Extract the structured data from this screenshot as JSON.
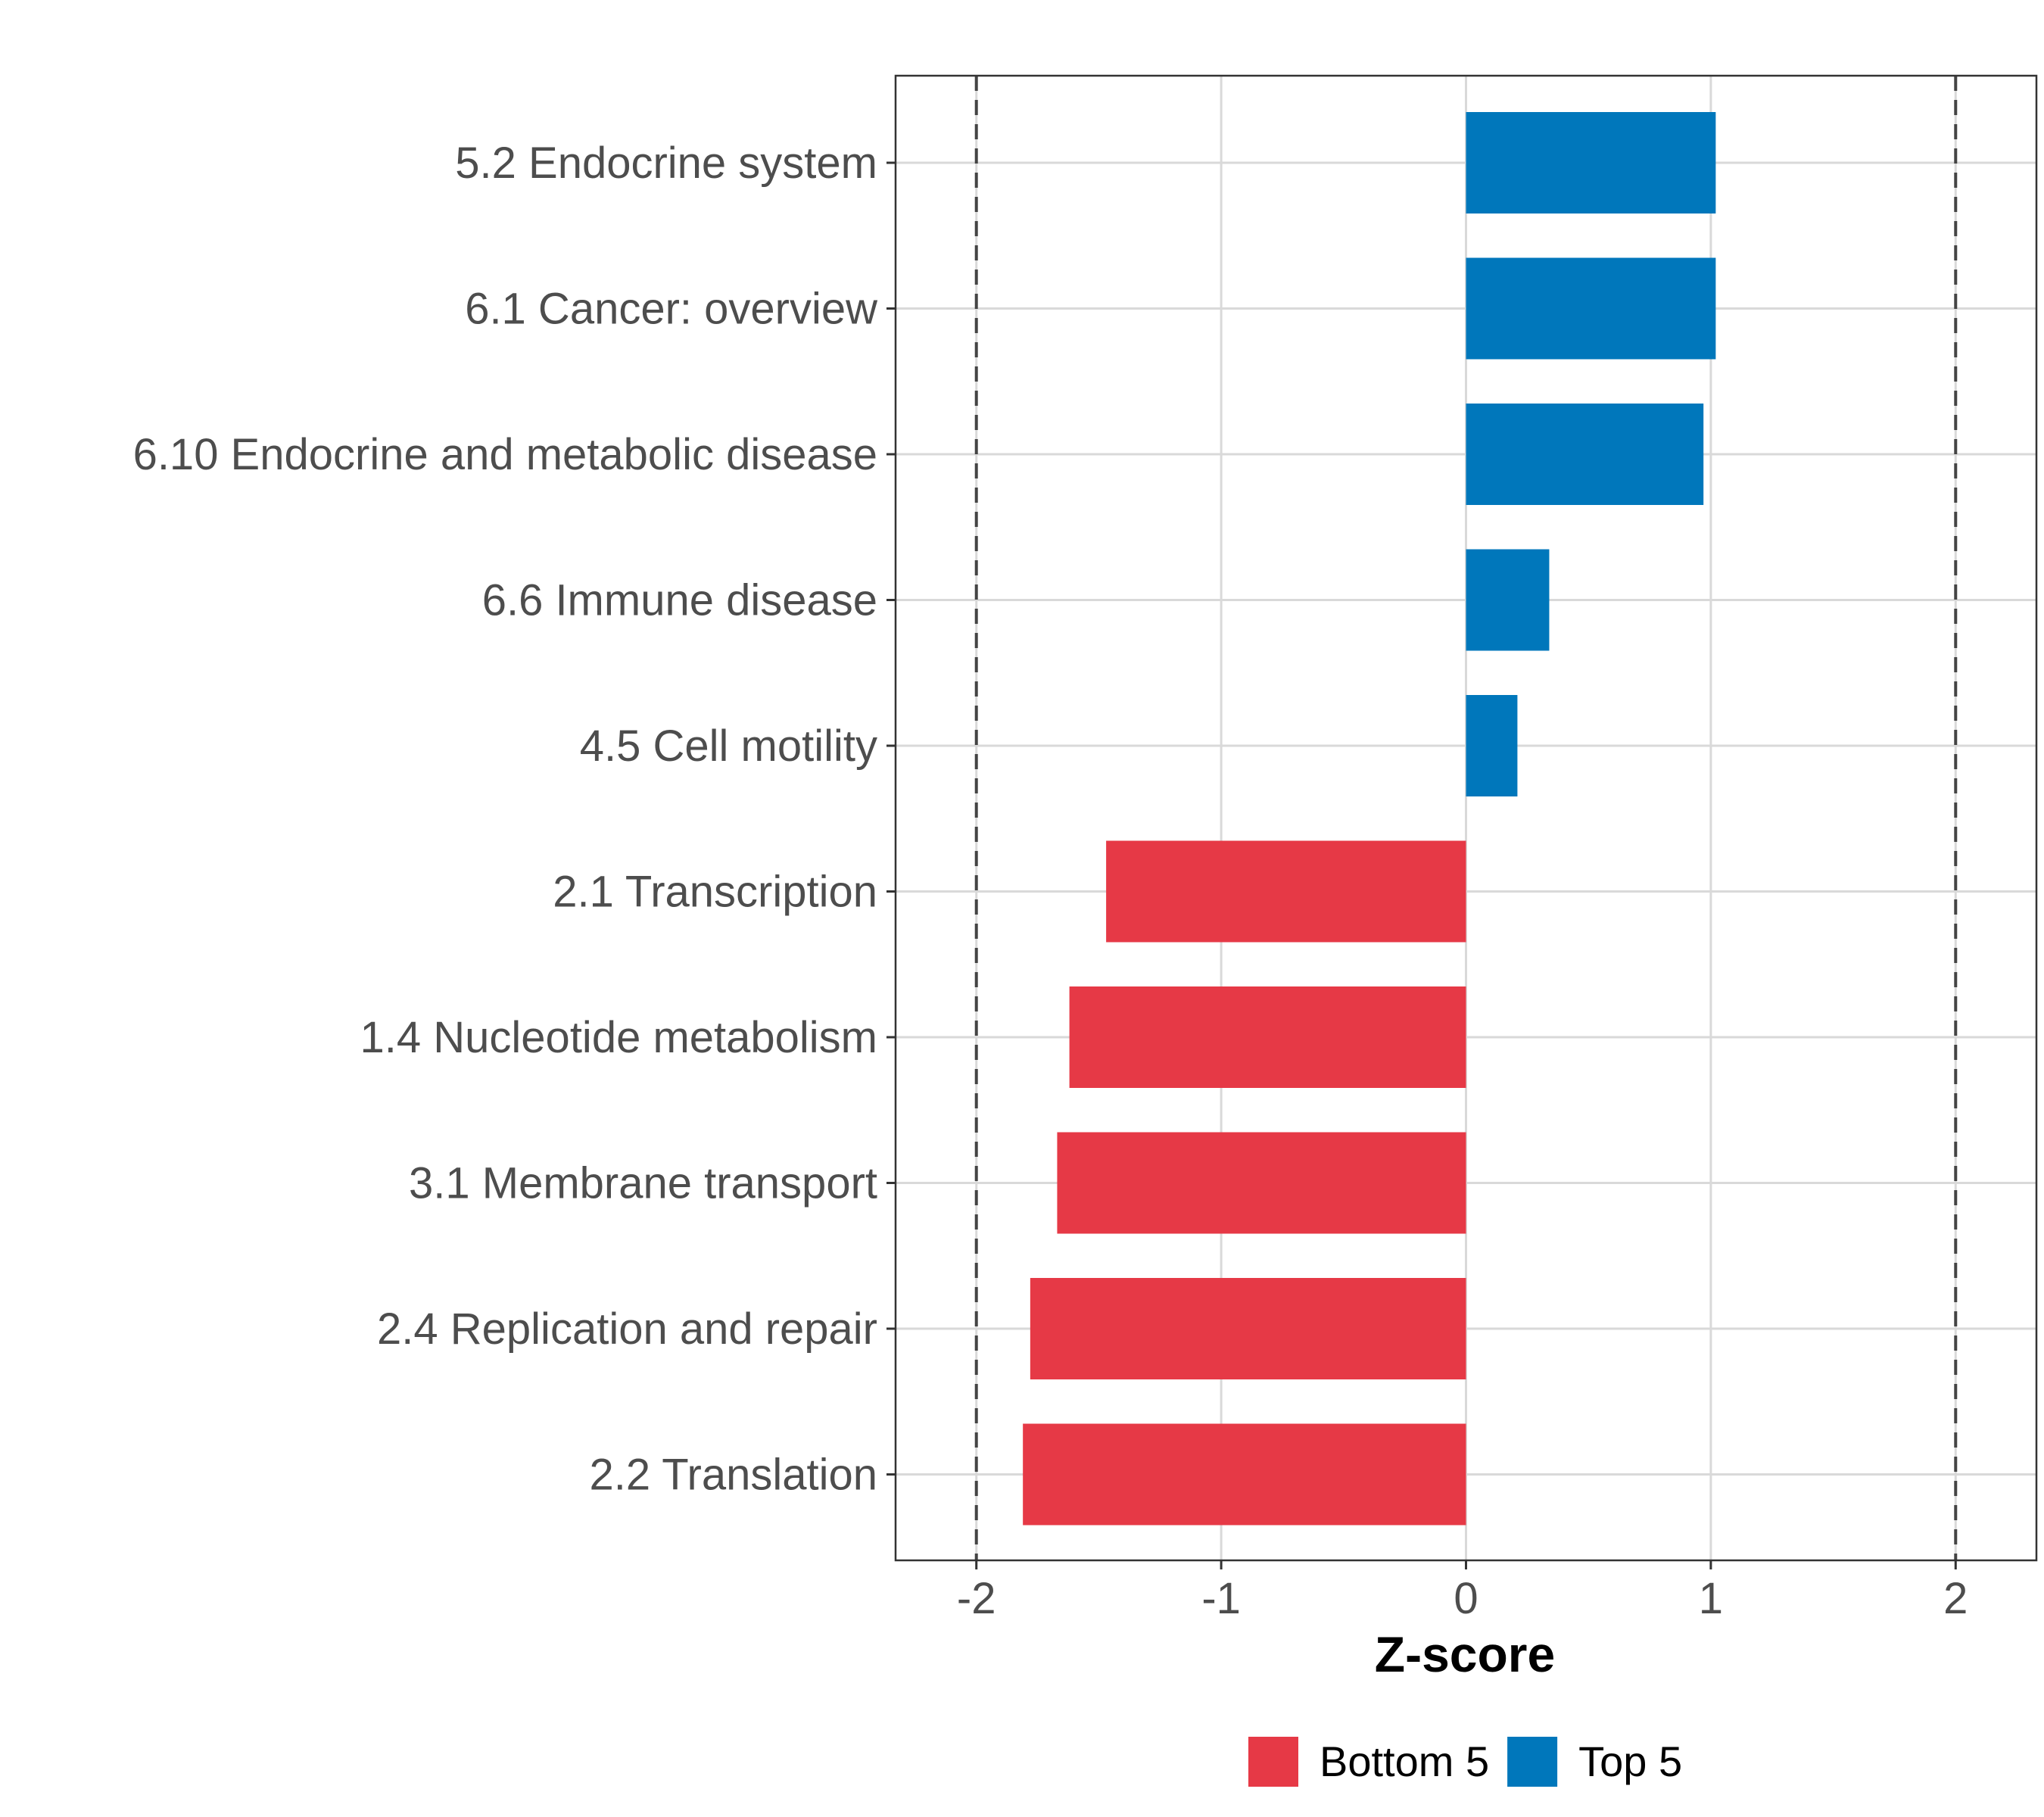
{
  "chart_data": {
    "type": "bar",
    "orientation": "horizontal",
    "title": "",
    "xlabel": "Z-score",
    "ylabel": "",
    "xlim": [
      -2.33,
      2.33
    ],
    "xticks": [
      -2,
      -1,
      0,
      1,
      2
    ],
    "tick_labels": [
      "-2",
      "-1",
      "0",
      "1",
      "2"
    ],
    "grid": true,
    "reference_lines": [
      -2,
      2
    ],
    "categories": [
      "5.2 Endocrine system",
      "6.1 Cancer: overview",
      "6.10 Endocrine and metabolic disease",
      "6.6 Immune disease",
      "4.5 Cell motility",
      "2.1 Transcription",
      "1.4 Nucleotide metabolism",
      "3.1 Membrane transport",
      "2.4 Replication and repair",
      "2.2 Translation"
    ],
    "values": [
      1.02,
      1.02,
      0.97,
      0.34,
      0.21,
      -1.47,
      -1.62,
      -1.67,
      -1.78,
      -1.81
    ],
    "groups": [
      "Top 5",
      "Top 5",
      "Top 5",
      "Top 5",
      "Top 5",
      "Bottom 5",
      "Bottom 5",
      "Bottom 5",
      "Bottom 5",
      "Bottom 5"
    ],
    "legend": {
      "position": "bottom",
      "entries": [
        {
          "label": "Bottom 5",
          "color": "#E63946"
        },
        {
          "label": "Top 5",
          "color": "#0077BB"
        }
      ]
    }
  }
}
